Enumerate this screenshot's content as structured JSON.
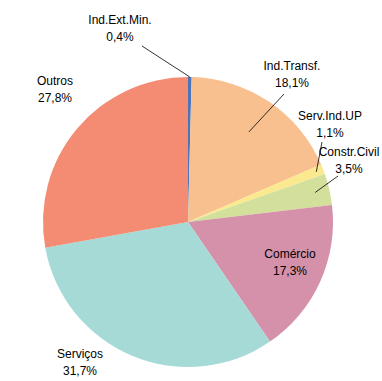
{
  "chart_data": {
    "type": "pie",
    "categories": [
      "Ind.Ext.Min.",
      "Ind.Transf.",
      "Serv.Ind.UP",
      "Constr.Civil",
      "Comércio",
      "Serviços",
      "Outros"
    ],
    "values": [
      0.4,
      18.1,
      1.1,
      3.5,
      17.3,
      31.7,
      27.8
    ],
    "value_labels": [
      "0,4%",
      "18,1%",
      "1,1%",
      "3,5%",
      "17,3%",
      "31,7%",
      "27,8%"
    ],
    "colors": [
      "#4d74b8",
      "#f8c08e",
      "#fbe98f",
      "#d3e09c",
      "#d491a9",
      "#a6dad7",
      "#f38c72"
    ],
    "data_labels": true
  }
}
